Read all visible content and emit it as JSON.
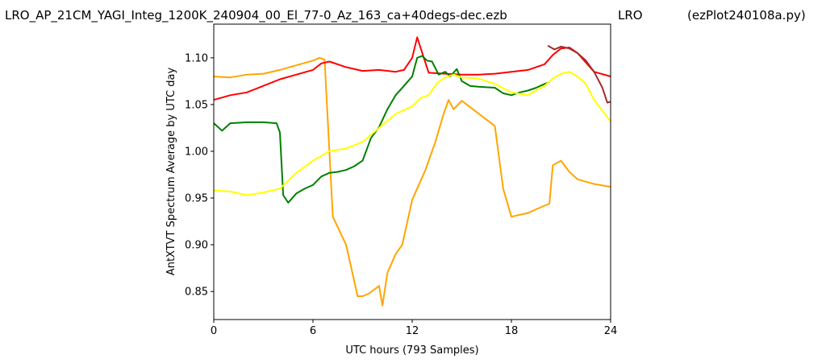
{
  "header": {
    "filename": "LRO_AP_21CM_YAGI_Integ_1200K_240904_00_El_77-0_Az_163_ca+40degs-dec.ezb",
    "object": "LRO",
    "program": "(ezPlot240108a.py)"
  },
  "chart_data": {
    "type": "line",
    "xlabel": "UTC hours  (793 Samples)",
    "ylabel": "AntXTVT Spectrum Average by UTC day",
    "xlim": [
      0,
      24
    ],
    "ylim": [
      0.82,
      1.136
    ],
    "xticks": [
      0,
      6,
      12,
      18,
      24
    ],
    "yticks": [
      "0.85",
      "0.90",
      "0.95",
      "1.00",
      "1.05",
      "1.10"
    ],
    "grid": false,
    "series": [
      {
        "color": "#ffa500",
        "points": [
          [
            0,
            1.08
          ],
          [
            1,
            1.079
          ],
          [
            2,
            1.082
          ],
          [
            3,
            1.083
          ],
          [
            4,
            1.087
          ],
          [
            5,
            1.092
          ],
          [
            6,
            1.097
          ],
          [
            6.4,
            1.1
          ],
          [
            6.7,
            1.098
          ],
          [
            7.2,
            0.93
          ],
          [
            8,
            0.9
          ],
          [
            8.7,
            0.845
          ],
          [
            9,
            0.845
          ],
          [
            9.4,
            0.848
          ],
          [
            10,
            0.856
          ],
          [
            10.2,
            0.835
          ],
          [
            10.5,
            0.87
          ],
          [
            11,
            0.89
          ],
          [
            11.4,
            0.9
          ],
          [
            12,
            0.948
          ],
          [
            12.8,
            0.98
          ],
          [
            13.4,
            1.01
          ],
          [
            13.9,
            1.04
          ],
          [
            14.2,
            1.055
          ],
          [
            14.5,
            1.045
          ],
          [
            15,
            1.054
          ],
          [
            17,
            1.027
          ],
          [
            17.5,
            0.96
          ],
          [
            18,
            0.93
          ],
          [
            18.5,
            0.932
          ],
          [
            19,
            0.934
          ],
          [
            19.5,
            0.938
          ],
          [
            20.3,
            0.944
          ],
          [
            20.5,
            0.985
          ],
          [
            21,
            0.99
          ],
          [
            21.5,
            0.978
          ],
          [
            22,
            0.97
          ],
          [
            23,
            0.965
          ],
          [
            24,
            0.962
          ]
        ]
      },
      {
        "color": "#ff0000",
        "points": [
          [
            0,
            1.055
          ],
          [
            1,
            1.06
          ],
          [
            2,
            1.063
          ],
          [
            3,
            1.07
          ],
          [
            4,
            1.077
          ],
          [
            5,
            1.082
          ],
          [
            6,
            1.087
          ],
          [
            6.5,
            1.094
          ],
          [
            7,
            1.096
          ],
          [
            8,
            1.09
          ],
          [
            9,
            1.086
          ],
          [
            10,
            1.087
          ],
          [
            11,
            1.085
          ],
          [
            11.5,
            1.087
          ],
          [
            12,
            1.1
          ],
          [
            12.3,
            1.122
          ],
          [
            12.7,
            1.1
          ],
          [
            13,
            1.084
          ],
          [
            14,
            1.083
          ],
          [
            15,
            1.082
          ],
          [
            16,
            1.082
          ],
          [
            17,
            1.083
          ],
          [
            18,
            1.085
          ],
          [
            19,
            1.087
          ],
          [
            20,
            1.093
          ],
          [
            20.5,
            1.103
          ],
          [
            21,
            1.11
          ],
          [
            21.5,
            1.111
          ],
          [
            22,
            1.105
          ],
          [
            23,
            1.085
          ],
          [
            24,
            1.08
          ]
        ]
      },
      {
        "color": "#008000",
        "points": [
          [
            0,
            1.03
          ],
          [
            0.5,
            1.022
          ],
          [
            1,
            1.03
          ],
          [
            2,
            1.031
          ],
          [
            3,
            1.031
          ],
          [
            3.8,
            1.03
          ],
          [
            4,
            1.02
          ],
          [
            4.2,
            0.953
          ],
          [
            4.5,
            0.945
          ],
          [
            5,
            0.955
          ],
          [
            5.5,
            0.96
          ],
          [
            6,
            0.964
          ],
          [
            6.5,
            0.973
          ],
          [
            7,
            0.977
          ],
          [
            7.5,
            0.978
          ],
          [
            8,
            0.98
          ],
          [
            8.5,
            0.984
          ],
          [
            9,
            0.99
          ],
          [
            9.5,
            1.014
          ],
          [
            10,
            1.026
          ],
          [
            10.5,
            1.045
          ],
          [
            11,
            1.06
          ],
          [
            11.5,
            1.07
          ],
          [
            12,
            1.08
          ],
          [
            12.3,
            1.1
          ],
          [
            12.6,
            1.102
          ],
          [
            12.9,
            1.097
          ],
          [
            13.2,
            1.096
          ],
          [
            13.6,
            1.082
          ],
          [
            14,
            1.085
          ],
          [
            14.3,
            1.08
          ],
          [
            14.7,
            1.088
          ],
          [
            15,
            1.075
          ],
          [
            15.5,
            1.07
          ],
          [
            16,
            1.069
          ],
          [
            17,
            1.068
          ],
          [
            17.5,
            1.062
          ],
          [
            18,
            1.06
          ],
          [
            18.5,
            1.063
          ],
          [
            19,
            1.065
          ],
          [
            19.5,
            1.068
          ],
          [
            20,
            1.072
          ],
          [
            20.3,
            1.074
          ]
        ]
      },
      {
        "color": "#ffff00",
        "points": [
          [
            0,
            0.958
          ],
          [
            1,
            0.957
          ],
          [
            2,
            0.953
          ],
          [
            3,
            0.956
          ],
          [
            4,
            0.96
          ],
          [
            5,
            0.977
          ],
          [
            6,
            0.99
          ],
          [
            7,
            1.0
          ],
          [
            8,
            1.003
          ],
          [
            9,
            1.01
          ],
          [
            10,
            1.025
          ],
          [
            11,
            1.04
          ],
          [
            12,
            1.048
          ],
          [
            12.5,
            1.057
          ],
          [
            13,
            1.06
          ],
          [
            13.5,
            1.073
          ],
          [
            14,
            1.079
          ],
          [
            14.5,
            1.082
          ],
          [
            15,
            1.079
          ],
          [
            16,
            1.078
          ],
          [
            17,
            1.072
          ],
          [
            18,
            1.063
          ],
          [
            19,
            1.06
          ],
          [
            20,
            1.07
          ],
          [
            20.5,
            1.078
          ],
          [
            21,
            1.083
          ],
          [
            21.5,
            1.085
          ],
          [
            22,
            1.08
          ],
          [
            22.5,
            1.072
          ],
          [
            23,
            1.055
          ],
          [
            24,
            1.032
          ]
        ]
      },
      {
        "color": "#a52a2a",
        "points": [
          [
            20.2,
            1.113
          ],
          [
            20.6,
            1.109
          ],
          [
            21,
            1.112
          ],
          [
            21.5,
            1.11
          ],
          [
            22,
            1.105
          ],
          [
            22.5,
            1.097
          ],
          [
            23,
            1.085
          ],
          [
            23.5,
            1.068
          ],
          [
            23.8,
            1.052
          ],
          [
            24,
            1.053
          ]
        ]
      }
    ]
  }
}
